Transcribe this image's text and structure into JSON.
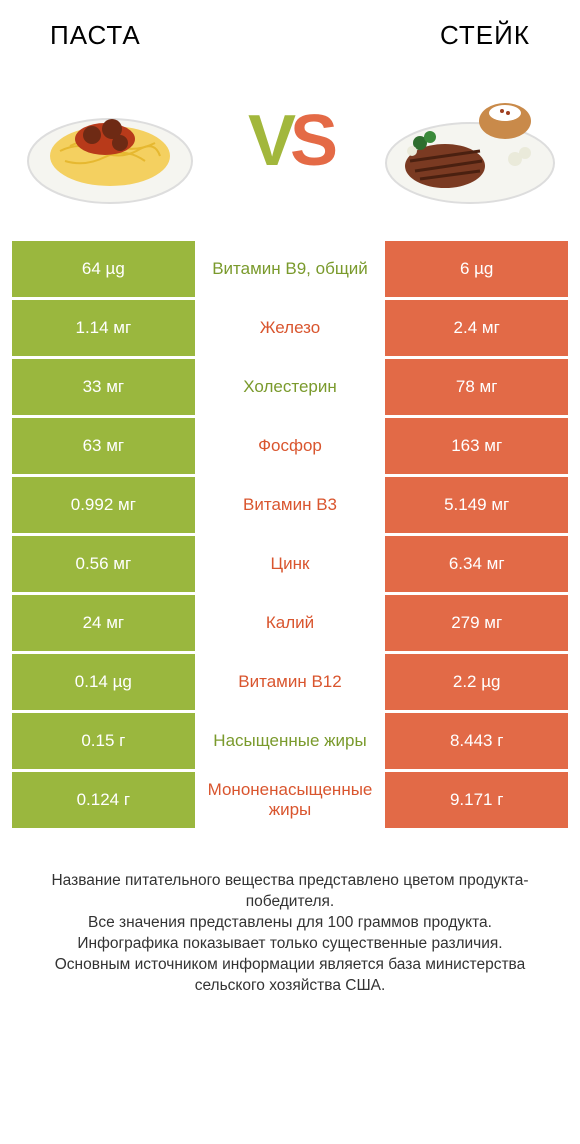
{
  "colors": {
    "left": "#9ab73e",
    "right": "#e26a47",
    "left_label": "#7a9a2c",
    "right_label": "#d9552e",
    "bg": "#ffffff"
  },
  "header": {
    "left_title": "ПАСТА",
    "right_title": "СТЕЙК"
  },
  "vs": {
    "v": "V",
    "s": "S"
  },
  "rows": [
    {
      "left": "64 µg",
      "label": "Витамин B9, общий",
      "right": "6 µg",
      "winner": "left"
    },
    {
      "left": "1.14 мг",
      "label": "Железо",
      "right": "2.4 мг",
      "winner": "right"
    },
    {
      "left": "33 мг",
      "label": "Холестерин",
      "right": "78 мг",
      "winner": "left"
    },
    {
      "left": "63 мг",
      "label": "Фосфор",
      "right": "163 мг",
      "winner": "right"
    },
    {
      "left": "0.992 мг",
      "label": "Витамин B3",
      "right": "5.149 мг",
      "winner": "right"
    },
    {
      "left": "0.56 мг",
      "label": "Цинк",
      "right": "6.34 мг",
      "winner": "right"
    },
    {
      "left": "24 мг",
      "label": "Калий",
      "right": "279 мг",
      "winner": "right"
    },
    {
      "left": "0.14 µg",
      "label": "Витамин B12",
      "right": "2.2 µg",
      "winner": "right"
    },
    {
      "left": "0.15 г",
      "label": "Насыщенные жиры",
      "right": "8.443 г",
      "winner": "left"
    },
    {
      "left": "0.124 г",
      "label": "Мононенасыщенные жиры",
      "right": "9.171 г",
      "winner": "right"
    }
  ],
  "footer": "Название питательного вещества представлено цветом продукта-победителя.\nВсе значения представлены для 100 граммов продукта.\nИнфографика показывает только существенные различия.\nОсновным источником информации является база министерства сельского хозяйства США."
}
